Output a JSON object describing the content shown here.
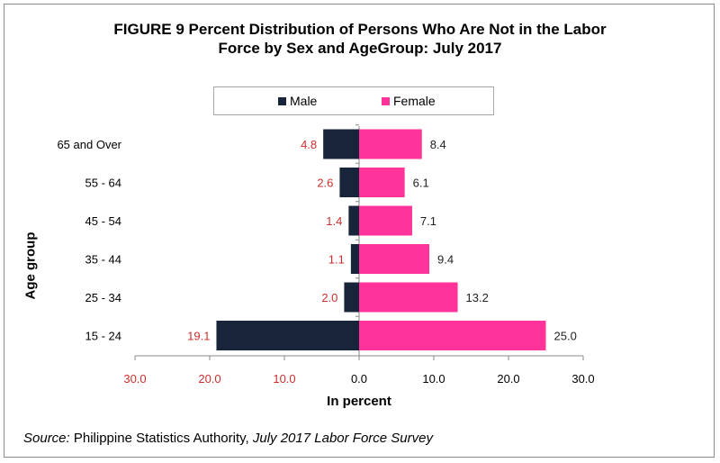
{
  "title_line1": "FIGURE 9 Percent Distribution of Persons Who Are Not in the Labor",
  "title_line2": "Force by Sex and AgeGroup: July 2017",
  "source": {
    "label": "Source:",
    "authority": "Philippine Statistics Authority,",
    "survey": "July 2017 Labor Force Survey"
  },
  "chart_data": {
    "type": "bar",
    "orientation": "horizontal",
    "title": "FIGURE 9 Percent Distribution of Persons Who Are Not in the Labor Force by Sex and AgeGroup: July 2017",
    "xlabel": "In percent",
    "ylabel": "Age group",
    "categories": [
      "65  and Over",
      "55 - 64",
      "45 - 54",
      "35 - 44",
      "25 - 34",
      "15 - 24"
    ],
    "series": [
      {
        "name": "Male",
        "values": [
          4.8,
          2.6,
          1.4,
          1.1,
          2.0,
          19.1
        ],
        "color": "#17243a",
        "label_color": "#cc2f2f",
        "side": "left"
      },
      {
        "name": "Female",
        "values": [
          8.4,
          6.1,
          7.1,
          9.4,
          13.2,
          25.0
        ],
        "color": "#ff3399",
        "label_color": "#222222",
        "side": "right"
      }
    ],
    "x_ticks": [
      "30.0",
      "20.0",
      "10.0",
      "0.0",
      "10.0",
      "20.0",
      "30.0"
    ],
    "x_tick_colors": [
      "#cc2f2f",
      "#cc2f2f",
      "#cc2f2f",
      "#000000",
      "#000000",
      "#000000",
      "#000000"
    ],
    "xlim": [
      -30,
      30
    ],
    "legend_position": "top",
    "grid": false
  }
}
